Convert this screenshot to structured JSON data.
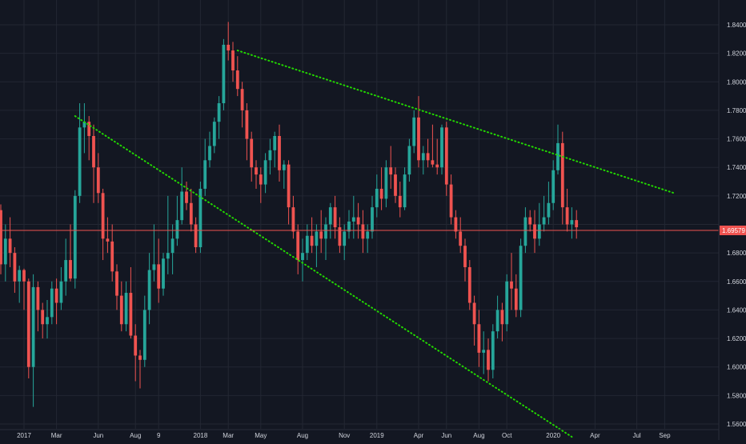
{
  "chart_data": {
    "type": "candlestick",
    "title": "",
    "xlabel": "",
    "ylabel": "",
    "ylim": [
      1.55,
      1.845
    ],
    "y_ticks": [
      "1.84000",
      "1.82000",
      "1.80000",
      "1.78000",
      "1.76000",
      "1.74000",
      "1.72000",
      "1.70000",
      "1.68000",
      "1.66000",
      "1.64000",
      "1.62000",
      "1.60000",
      "1.58000",
      "1.56000"
    ],
    "x_ticks": [
      {
        "i": 5,
        "label": "2017"
      },
      {
        "i": 12,
        "label": "Mar"
      },
      {
        "i": 21,
        "label": "Jun"
      },
      {
        "i": 29,
        "label": "Aug"
      },
      {
        "i": 34,
        "label": "9"
      },
      {
        "i": 43,
        "label": "2018"
      },
      {
        "i": 49,
        "label": "Mar"
      },
      {
        "i": 56,
        "label": "May"
      },
      {
        "i": 65,
        "label": "Aug"
      },
      {
        "i": 74,
        "label": "Nov"
      },
      {
        "i": 81,
        "label": "2019"
      },
      {
        "i": 90,
        "label": "Apr"
      },
      {
        "i": 96,
        "label": "Jun"
      },
      {
        "i": 103,
        "label": "Aug"
      },
      {
        "i": 109,
        "label": "Oct"
      },
      {
        "i": 119,
        "label": "2020"
      },
      {
        "i": 128,
        "label": "Apr"
      },
      {
        "i": 137,
        "label": "Jul"
      },
      {
        "i": 143,
        "label": "Sep"
      }
    ],
    "current_price": 1.69579,
    "current_price_label": "1.69579",
    "trendlines": [
      {
        "name": "upper-resistance",
        "points": [
          [
            51,
            1.822
          ],
          [
            145,
            1.722
          ]
        ]
      },
      {
        "name": "lower-support",
        "points": [
          [
            16,
            1.776
          ],
          [
            123,
            1.551
          ]
        ]
      }
    ],
    "colors": {
      "background": "#131722",
      "up": "#26a69a",
      "down": "#ef5350",
      "trendline": "#22d800",
      "price_line": "#ef5350",
      "grid": "#232733",
      "text": "#d1d4dc"
    },
    "candles": [
      [
        1.71,
        1.714,
        1.665,
        1.672
      ],
      [
        1.672,
        1.7,
        1.66,
        1.69
      ],
      [
        1.69,
        1.705,
        1.67,
        1.68
      ],
      [
        1.68,
        1.684,
        1.652,
        1.66
      ],
      [
        1.66,
        1.671,
        1.645,
        1.668
      ],
      [
        1.668,
        1.669,
        1.64,
        1.66
      ],
      [
        1.66,
        1.662,
        1.592,
        1.6
      ],
      [
        1.6,
        1.665,
        1.572,
        1.656
      ],
      [
        1.656,
        1.66,
        1.625,
        1.64
      ],
      [
        1.64,
        1.645,
        1.62,
        1.63
      ],
      [
        1.63,
        1.647,
        1.62,
        1.635
      ],
      [
        1.635,
        1.66,
        1.63,
        1.655
      ],
      [
        1.655,
        1.662,
        1.63,
        1.645
      ],
      [
        1.645,
        1.67,
        1.64,
        1.66
      ],
      [
        1.66,
        1.69,
        1.65,
        1.675
      ],
      [
        1.675,
        1.7,
        1.66,
        1.662
      ],
      [
        1.662,
        1.724,
        1.655,
        1.72
      ],
      [
        1.72,
        1.785,
        1.715,
        1.768
      ],
      [
        1.768,
        1.785,
        1.75,
        1.772
      ],
      [
        1.772,
        1.776,
        1.745,
        1.762
      ],
      [
        1.762,
        1.77,
        1.715,
        1.74
      ],
      [
        1.74,
        1.75,
        1.715,
        1.722
      ],
      [
        1.722,
        1.725,
        1.675,
        1.69
      ],
      [
        1.69,
        1.705,
        1.68,
        1.688
      ],
      [
        1.688,
        1.7,
        1.66,
        1.667
      ],
      [
        1.667,
        1.672,
        1.64,
        1.65
      ],
      [
        1.65,
        1.66,
        1.625,
        1.63
      ],
      [
        1.63,
        1.66,
        1.625,
        1.652
      ],
      [
        1.652,
        1.67,
        1.62,
        1.622
      ],
      [
        1.622,
        1.63,
        1.59,
        1.608
      ],
      [
        1.608,
        1.612,
        1.585,
        1.605
      ],
      [
        1.605,
        1.65,
        1.6,
        1.64
      ],
      [
        1.64,
        1.68,
        1.63,
        1.668
      ],
      [
        1.668,
        1.7,
        1.66,
        1.672
      ],
      [
        1.672,
        1.69,
        1.645,
        1.655
      ],
      [
        1.655,
        1.68,
        1.65,
        1.676
      ],
      [
        1.676,
        1.72,
        1.665,
        1.68
      ],
      [
        1.68,
        1.7,
        1.665,
        1.69
      ],
      [
        1.69,
        1.72,
        1.685,
        1.703
      ],
      [
        1.703,
        1.74,
        1.7,
        1.723
      ],
      [
        1.723,
        1.73,
        1.71,
        1.715
      ],
      [
        1.715,
        1.725,
        1.695,
        1.7
      ],
      [
        1.7,
        1.705,
        1.68,
        1.684
      ],
      [
        1.684,
        1.73,
        1.68,
        1.725
      ],
      [
        1.725,
        1.76,
        1.72,
        1.745
      ],
      [
        1.745,
        1.765,
        1.74,
        1.755
      ],
      [
        1.755,
        1.775,
        1.75,
        1.772
      ],
      [
        1.772,
        1.79,
        1.76,
        1.785
      ],
      [
        1.785,
        1.83,
        1.78,
        1.826
      ],
      [
        1.826,
        1.842,
        1.815,
        1.822
      ],
      [
        1.822,
        1.828,
        1.8,
        1.808
      ],
      [
        1.808,
        1.818,
        1.79,
        1.795
      ],
      [
        1.795,
        1.8,
        1.768,
        1.78
      ],
      [
        1.78,
        1.785,
        1.745,
        1.76
      ],
      [
        1.76,
        1.765,
        1.73,
        1.74
      ],
      [
        1.74,
        1.745,
        1.725,
        1.735
      ],
      [
        1.735,
        1.74,
        1.715,
        1.728
      ],
      [
        1.728,
        1.75,
        1.722,
        1.745
      ],
      [
        1.745,
        1.76,
        1.735,
        1.752
      ],
      [
        1.752,
        1.765,
        1.74,
        1.762
      ],
      [
        1.762,
        1.77,
        1.73,
        1.738
      ],
      [
        1.738,
        1.745,
        1.725,
        1.742
      ],
      [
        1.742,
        1.745,
        1.7,
        1.712
      ],
      [
        1.712,
        1.72,
        1.69,
        1.695
      ],
      [
        1.695,
        1.7,
        1.665,
        1.675
      ],
      [
        1.675,
        1.69,
        1.66,
        1.68
      ],
      [
        1.68,
        1.7,
        1.675,
        1.692
      ],
      [
        1.692,
        1.705,
        1.68,
        1.685
      ],
      [
        1.685,
        1.7,
        1.67,
        1.695
      ],
      [
        1.695,
        1.71,
        1.68,
        1.69
      ],
      [
        1.69,
        1.705,
        1.675,
        1.7
      ],
      [
        1.7,
        1.715,
        1.69,
        1.712
      ],
      [
        1.712,
        1.72,
        1.69,
        1.698
      ],
      [
        1.698,
        1.705,
        1.68,
        1.685
      ],
      [
        1.685,
        1.7,
        1.675,
        1.695
      ],
      [
        1.695,
        1.71,
        1.69,
        1.702
      ],
      [
        1.702,
        1.72,
        1.69,
        1.705
      ],
      [
        1.705,
        1.715,
        1.69,
        1.7
      ],
      [
        1.7,
        1.71,
        1.68,
        1.69
      ],
      [
        1.69,
        1.7,
        1.68,
        1.695
      ],
      [
        1.695,
        1.72,
        1.69,
        1.712
      ],
      [
        1.712,
        1.735,
        1.705,
        1.725
      ],
      [
        1.725,
        1.74,
        1.71,
        1.718
      ],
      [
        1.718,
        1.745,
        1.712,
        1.74
      ],
      [
        1.74,
        1.755,
        1.725,
        1.735
      ],
      [
        1.735,
        1.74,
        1.715,
        1.72
      ],
      [
        1.72,
        1.73,
        1.705,
        1.712
      ],
      [
        1.712,
        1.74,
        1.71,
        1.735
      ],
      [
        1.735,
        1.76,
        1.73,
        1.755
      ],
      [
        1.755,
        1.78,
        1.75,
        1.775
      ],
      [
        1.775,
        1.79,
        1.74,
        1.745
      ],
      [
        1.745,
        1.755,
        1.735,
        1.75
      ],
      [
        1.75,
        1.76,
        1.74,
        1.745
      ],
      [
        1.745,
        1.77,
        1.74,
        1.742
      ],
      [
        1.742,
        1.76,
        1.735,
        1.74
      ],
      [
        1.74,
        1.77,
        1.735,
        1.768
      ],
      [
        1.768,
        1.772,
        1.72,
        1.728
      ],
      [
        1.728,
        1.735,
        1.7,
        1.705
      ],
      [
        1.705,
        1.71,
        1.69,
        1.695
      ],
      [
        1.695,
        1.705,
        1.68,
        1.685
      ],
      [
        1.685,
        1.69,
        1.66,
        1.67
      ],
      [
        1.67,
        1.675,
        1.64,
        1.645
      ],
      [
        1.645,
        1.65,
        1.615,
        1.63
      ],
      [
        1.63,
        1.64,
        1.6,
        1.61
      ],
      [
        1.61,
        1.625,
        1.595,
        1.612
      ],
      [
        1.612,
        1.62,
        1.59,
        1.598
      ],
      [
        1.598,
        1.63,
        1.592,
        1.625
      ],
      [
        1.625,
        1.65,
        1.62,
        1.64
      ],
      [
        1.64,
        1.645,
        1.618,
        1.63
      ],
      [
        1.63,
        1.665,
        1.625,
        1.66
      ],
      [
        1.66,
        1.68,
        1.64,
        1.655
      ],
      [
        1.655,
        1.665,
        1.635,
        1.64
      ],
      [
        1.64,
        1.69,
        1.635,
        1.685
      ],
      [
        1.685,
        1.712,
        1.68,
        1.705
      ],
      [
        1.705,
        1.71,
        1.695,
        1.7
      ],
      [
        1.7,
        1.71,
        1.68,
        1.69
      ],
      [
        1.69,
        1.715,
        1.685,
        1.7
      ],
      [
        1.7,
        1.72,
        1.695,
        1.705
      ],
      [
        1.705,
        1.73,
        1.7,
        1.715
      ],
      [
        1.715,
        1.745,
        1.71,
        1.738
      ],
      [
        1.738,
        1.77,
        1.735,
        1.757
      ],
      [
        1.757,
        1.765,
        1.7,
        1.712
      ],
      [
        1.712,
        1.725,
        1.695,
        1.7
      ],
      [
        1.7,
        1.712,
        1.69,
        1.703
      ],
      [
        1.703,
        1.71,
        1.69,
        1.698
      ]
    ]
  }
}
